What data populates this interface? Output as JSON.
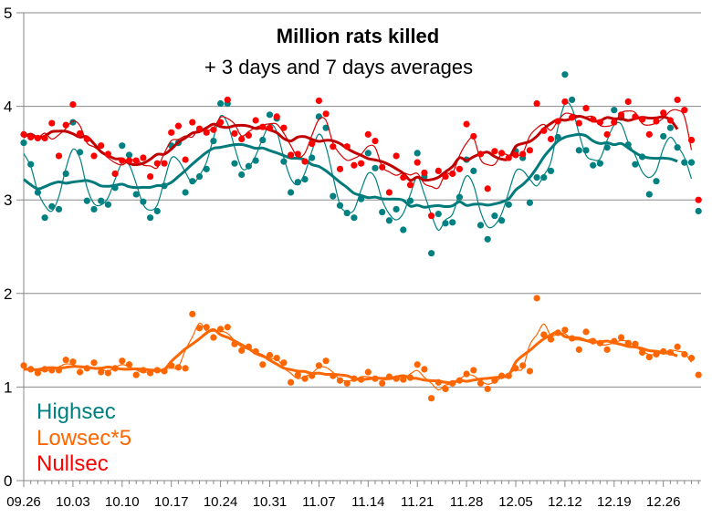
{
  "chart_data": {
    "type": "line",
    "title": "Million rats killed",
    "subtitle": "+ 3 days and 7 days averages",
    "xlabel": "",
    "ylabel": "",
    "ylim": [
      0,
      5
    ],
    "yticks": [
      "0",
      "1",
      "2",
      "3",
      "4",
      "5"
    ],
    "xtick_labels": [
      "09.26",
      "10.03",
      "10.10",
      "10.17",
      "10.24",
      "10.31",
      "11.07",
      "11.14",
      "11.21",
      "11.28",
      "12.05",
      "12.12",
      "12.19",
      "12.26"
    ],
    "grid": true,
    "legend_placement": "bottom-left",
    "averages": [
      "3 days",
      "7 days"
    ],
    "x": [
      "09.26",
      "09.27",
      "09.28",
      "09.29",
      "09.30",
      "10.01",
      "10.02",
      "10.03",
      "10.04",
      "10.05",
      "10.06",
      "10.07",
      "10.08",
      "10.09",
      "10.10",
      "10.11",
      "10.12",
      "10.13",
      "10.14",
      "10.15",
      "10.16",
      "10.17",
      "10.18",
      "10.19",
      "10.20",
      "10.21",
      "10.22",
      "10.23",
      "10.24",
      "10.25",
      "10.26",
      "10.27",
      "10.28",
      "10.29",
      "10.30",
      "10.31",
      "11.01",
      "11.02",
      "11.03",
      "11.04",
      "11.05",
      "11.06",
      "11.07",
      "11.08",
      "11.09",
      "11.10",
      "11.11",
      "11.12",
      "11.13",
      "11.14",
      "11.15",
      "11.16",
      "11.17",
      "11.18",
      "11.19",
      "11.20",
      "11.21",
      "11.22",
      "11.23",
      "11.24",
      "11.25",
      "11.26",
      "11.27",
      "11.28",
      "11.29",
      "11.30",
      "12.01",
      "12.02",
      "12.03",
      "12.04",
      "12.05",
      "12.06",
      "12.07",
      "12.08",
      "12.09",
      "12.10",
      "12.11",
      "12.12",
      "12.13",
      "12.14",
      "12.15",
      "12.16",
      "12.17",
      "12.18",
      "12.19",
      "12.20",
      "12.21",
      "12.22",
      "12.23",
      "12.24",
      "12.25",
      "12.26",
      "12.27",
      "12.28",
      "12.29",
      "12.30",
      "12.31"
    ],
    "series": [
      {
        "name": "Highsec",
        "color": "#008080",
        "values": [
          3.61,
          3.38,
          3.08,
          2.81,
          2.93,
          2.9,
          3.28,
          3.83,
          3.51,
          2.99,
          2.9,
          2.99,
          2.95,
          3.13,
          3.58,
          3.48,
          3.06,
          2.98,
          2.81,
          2.88,
          3.15,
          3.58,
          3.61,
          3.08,
          3.2,
          3.25,
          3.33,
          3.63,
          4.03,
          4.03,
          3.39,
          3.27,
          3.36,
          3.42,
          3.64,
          3.91,
          3.87,
          3.41,
          3.08,
          3.19,
          3.22,
          3.45,
          3.89,
          3.77,
          3.04,
          2.94,
          2.86,
          2.81,
          3.01,
          3.5,
          3.34,
          2.87,
          2.78,
          2.9,
          2.68,
          2.99,
          3.5,
          3.25,
          2.43,
          2.85,
          2.75,
          2.76,
          3.03,
          3.43,
          3.31,
          2.73,
          2.58,
          2.83,
          2.78,
          2.95,
          3.52,
          3.45,
          2.97,
          3.24,
          3.24,
          3.31,
          3.67,
          4.34,
          4.07,
          3.53,
          3.53,
          3.37,
          3.39,
          3.56,
          3.96,
          3.88,
          3.59,
          3.38,
          3.46,
          3.06,
          3.2,
          3.68,
          3.77,
          3.56,
          3.4,
          3.4,
          2.88
        ]
      },
      {
        "name": "Lowsec*5",
        "color": "#ff6600",
        "values": [
          1.23,
          1.19,
          1.15,
          1.19,
          1.18,
          1.18,
          1.29,
          1.27,
          1.16,
          1.2,
          1.26,
          1.16,
          1.15,
          1.2,
          1.28,
          1.24,
          1.13,
          1.18,
          1.15,
          1.18,
          1.17,
          1.23,
          1.21,
          1.2,
          1.78,
          1.63,
          1.64,
          1.53,
          1.62,
          1.64,
          1.46,
          1.39,
          1.43,
          1.38,
          1.24,
          1.34,
          1.31,
          1.26,
          1.05,
          1.13,
          1.09,
          1.12,
          1.23,
          1.28,
          1.12,
          1.07,
          1.04,
          1.09,
          1.08,
          1.16,
          1.09,
          1.04,
          1.11,
          1.09,
          1.08,
          1.1,
          1.24,
          1.19,
          0.88,
          1.05,
          0.98,
          1.04,
          1.07,
          1.14,
          1.18,
          1.04,
          0.98,
          1.07,
          1.12,
          1.12,
          1.2,
          1.23,
          1.17,
          1.95,
          1.56,
          1.51,
          1.58,
          1.61,
          1.52,
          1.4,
          1.59,
          1.49,
          1.47,
          1.4,
          1.49,
          1.53,
          1.47,
          1.46,
          1.37,
          1.32,
          1.35,
          1.38,
          1.37,
          1.43,
          1.35,
          1.31,
          1.13
        ]
      },
      {
        "name": "Nullsec",
        "color": "#ff0000",
        "values": [
          3.7,
          3.67,
          3.66,
          3.66,
          3.82,
          3.47,
          3.8,
          4.02,
          3.71,
          3.65,
          3.47,
          3.58,
          3.49,
          3.28,
          3.42,
          3.42,
          3.42,
          3.45,
          3.25,
          3.39,
          3.39,
          3.72,
          3.79,
          3.43,
          3.83,
          3.76,
          3.72,
          3.75,
          3.83,
          4.07,
          3.71,
          3.65,
          3.69,
          3.85,
          3.78,
          3.77,
          3.89,
          3.77,
          3.48,
          3.49,
          3.41,
          3.6,
          4.06,
          3.92,
          3.57,
          3.33,
          3.57,
          3.37,
          3.39,
          3.7,
          3.63,
          3.35,
          3.08,
          3.47,
          3.24,
          3.16,
          3.4,
          3.29,
          2.83,
          3.31,
          3.25,
          3.28,
          3.33,
          3.81,
          3.68,
          3.49,
          3.12,
          3.52,
          3.5,
          3.45,
          3.48,
          3.49,
          3.53,
          4.03,
          3.74,
          3.65,
          3.84,
          4.05,
          3.88,
          3.82,
          3.98,
          3.86,
          3.83,
          3.7,
          3.83,
          3.91,
          4.05,
          3.89,
          3.86,
          3.7,
          3.84,
          3.93,
          3.85,
          4.07,
          3.96,
          3.64,
          3.0
        ]
      }
    ]
  }
}
